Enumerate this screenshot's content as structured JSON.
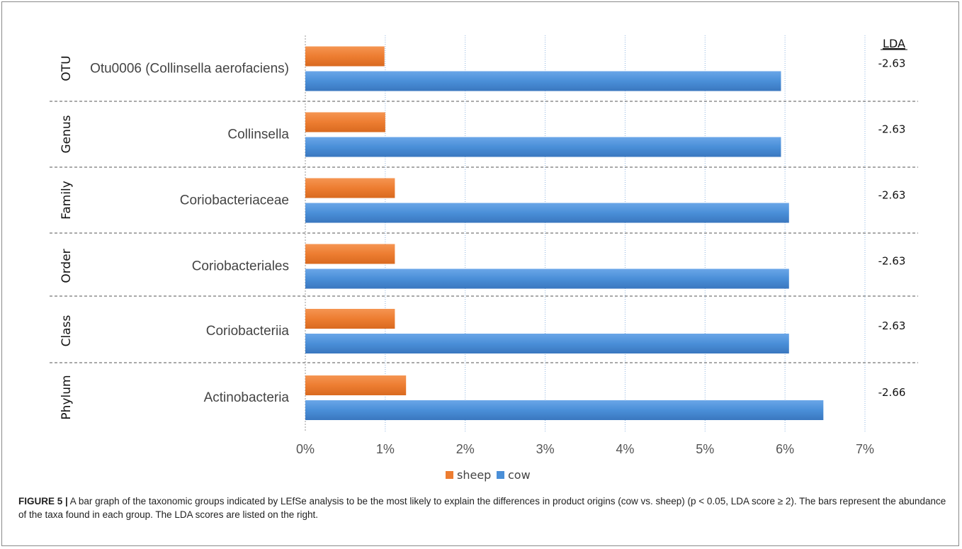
{
  "chart_data": {
    "type": "bar",
    "orientation": "horizontal",
    "categories": [
      "Otu0006 (Collinsella aerofaciens)",
      "Collinsella",
      "Coriobacteriaceae",
      "Coriobacteriales",
      "Coriobacteriia",
      "Actinobacteria"
    ],
    "ranks": [
      "OTU",
      "Genus",
      "Family",
      "Order",
      "Class",
      "Phylum"
    ],
    "series": [
      {
        "name": "sheep",
        "values": [
          0.99,
          1.0,
          1.12,
          1.12,
          1.12,
          1.26
        ]
      },
      {
        "name": "cow",
        "values": [
          5.95,
          5.95,
          6.05,
          6.05,
          6.05,
          6.48
        ]
      }
    ],
    "colors": {
      "sheep": "#ed7d31",
      "cow": "#4a8fd8"
    },
    "xlim": [
      0,
      7
    ],
    "x_ticks": [
      0,
      1,
      2,
      3,
      4,
      5,
      6,
      7
    ],
    "x_tick_labels": [
      "0%",
      "1%",
      "2%",
      "3%",
      "4%",
      "5%",
      "6%",
      "7%"
    ],
    "xlabel": "",
    "ylabel": "",
    "grid": true,
    "legend_position": "bottom",
    "lda_header": "LDA",
    "lda_scores": [
      "-2.63",
      "-2.63",
      "-2.63",
      "-2.63",
      "-2.63",
      "-2.66"
    ]
  },
  "caption": {
    "label": "FIGURE 5 |",
    "text": " A bar graph of the taxonomic groups indicated by LEfSe analysis to be the most likely to explain the differences in product origins (cow vs. sheep) (p < 0.05, LDA score ≥ 2). The bars represent the abundance of the taxa found in each group. The LDA scores are listed on the right."
  }
}
